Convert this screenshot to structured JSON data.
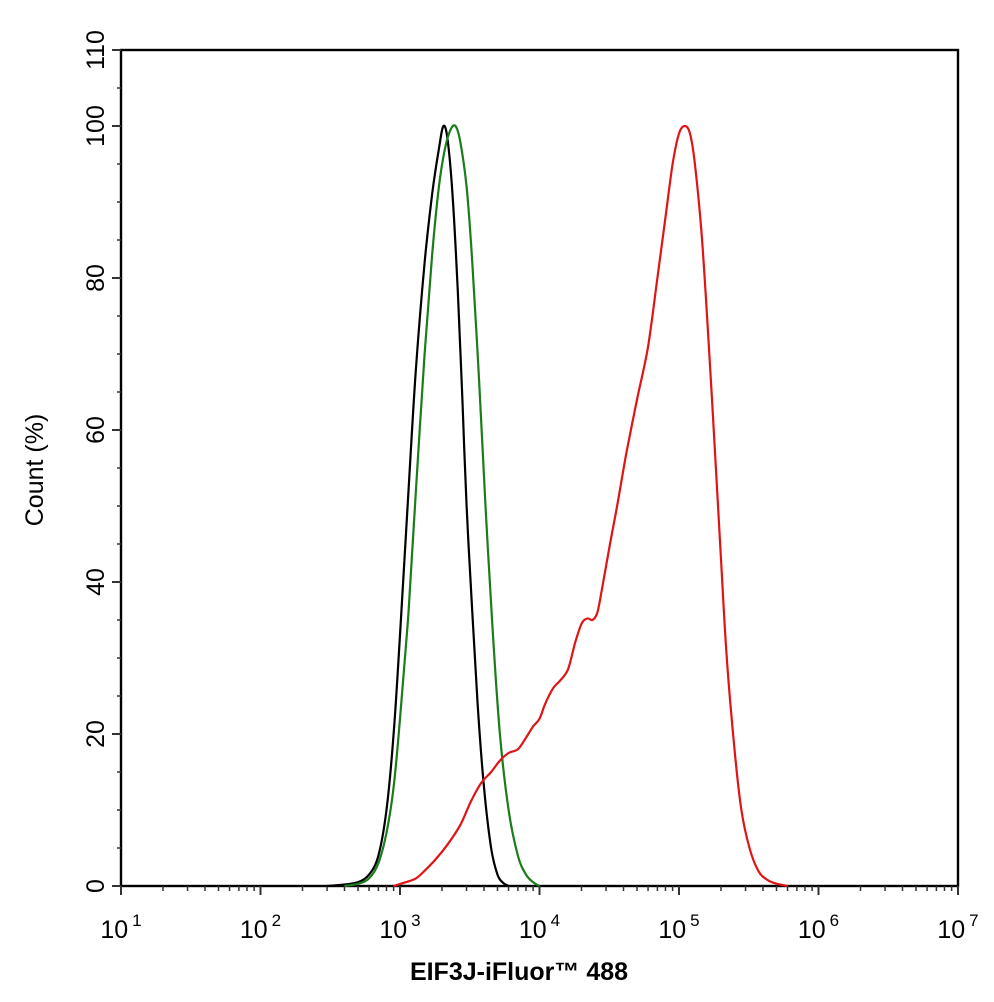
{
  "chart_data": {
    "type": "line",
    "xlabel": "EIF3J-iFluor™ 488",
    "ylabel": "Count  (%)",
    "xscale": "log",
    "xlim": [
      10,
      10000000
    ],
    "ylim": [
      0,
      110
    ],
    "x_ticks": [
      {
        "base": "10",
        "exp": "1",
        "value": 10
      },
      {
        "base": "10",
        "exp": "2",
        "value": 100
      },
      {
        "base": "10",
        "exp": "3",
        "value": 1000
      },
      {
        "base": "10",
        "exp": "4",
        "value": 10000
      },
      {
        "base": "10",
        "exp": "5",
        "value": 100000
      },
      {
        "base": "10",
        "exp": "6",
        "value": 1000000
      },
      {
        "base": "10",
        "exp": "7",
        "value": 10000000
      }
    ],
    "y_ticks": [
      "0",
      "20",
      "40",
      "60",
      "80",
      "100",
      "110"
    ],
    "grid": false,
    "legend": "none",
    "series": [
      {
        "color": "#000000",
        "points": [
          [
            300,
            0
          ],
          [
            400,
            0.2
          ],
          [
            500,
            0.5
          ],
          [
            600,
            1.5
          ],
          [
            700,
            4
          ],
          [
            800,
            10
          ],
          [
            900,
            20
          ],
          [
            1000,
            33
          ],
          [
            1150,
            52
          ],
          [
            1300,
            68
          ],
          [
            1500,
            82
          ],
          [
            1700,
            91
          ],
          [
            1900,
            97
          ],
          [
            2050,
            100
          ],
          [
            2200,
            98
          ],
          [
            2400,
            90
          ],
          [
            2600,
            78
          ],
          [
            2800,
            64
          ],
          [
            3000,
            50
          ],
          [
            3300,
            36
          ],
          [
            3600,
            24
          ],
          [
            4000,
            13
          ],
          [
            4500,
            5
          ],
          [
            5000,
            1.5
          ],
          [
            5500,
            0.4
          ],
          [
            6000,
            0
          ]
        ]
      },
      {
        "color": "#1a7d1a",
        "points": [
          [
            400,
            0
          ],
          [
            500,
            0.3
          ],
          [
            600,
            1
          ],
          [
            700,
            3
          ],
          [
            800,
            7
          ],
          [
            900,
            13
          ],
          [
            1000,
            22
          ],
          [
            1150,
            36
          ],
          [
            1300,
            52
          ],
          [
            1500,
            70
          ],
          [
            1700,
            83
          ],
          [
            1900,
            92
          ],
          [
            2100,
            97
          ],
          [
            2300,
            99.5
          ],
          [
            2500,
            100
          ],
          [
            2700,
            98
          ],
          [
            3000,
            92
          ],
          [
            3300,
            82
          ],
          [
            3700,
            66
          ],
          [
            4100,
            50
          ],
          [
            4600,
            34
          ],
          [
            5200,
            20
          ],
          [
            6000,
            10
          ],
          [
            7000,
            4
          ],
          [
            8000,
            1.5
          ],
          [
            9000,
            0.5
          ],
          [
            10000,
            0
          ]
        ]
      },
      {
        "color": "#e01414",
        "points": [
          [
            900,
            0
          ],
          [
            1100,
            0.5
          ],
          [
            1300,
            1
          ],
          [
            1500,
            2
          ],
          [
            1800,
            3.5
          ],
          [
            2200,
            5.5
          ],
          [
            2700,
            8
          ],
          [
            3200,
            11
          ],
          [
            3800,
            13.5
          ],
          [
            4500,
            15
          ],
          [
            5200,
            16.5
          ],
          [
            6000,
            17.5
          ],
          [
            7000,
            18
          ],
          [
            8000,
            19.5
          ],
          [
            9000,
            21
          ],
          [
            10000,
            22
          ],
          [
            11000,
            24
          ],
          [
            12500,
            26
          ],
          [
            14000,
            27
          ],
          [
            16000,
            28.5
          ],
          [
            18000,
            32
          ],
          [
            20000,
            34.5
          ],
          [
            22000,
            35.2
          ],
          [
            24000,
            35
          ],
          [
            26000,
            36
          ],
          [
            28000,
            39
          ],
          [
            32000,
            45
          ],
          [
            36000,
            50
          ],
          [
            42000,
            57
          ],
          [
            50000,
            64
          ],
          [
            60000,
            71
          ],
          [
            70000,
            80
          ],
          [
            80000,
            88
          ],
          [
            90000,
            95
          ],
          [
            100000,
            99
          ],
          [
            110000,
            100
          ],
          [
            120000,
            99
          ],
          [
            130000,
            95
          ],
          [
            145000,
            86
          ],
          [
            160000,
            74
          ],
          [
            180000,
            58
          ],
          [
            200000,
            43
          ],
          [
            220000,
            30
          ],
          [
            250000,
            18
          ],
          [
            280000,
            10
          ],
          [
            320000,
            5
          ],
          [
            370000,
            2
          ],
          [
            430000,
            0.8
          ],
          [
            500000,
            0.3
          ],
          [
            600000,
            0
          ]
        ]
      }
    ]
  }
}
